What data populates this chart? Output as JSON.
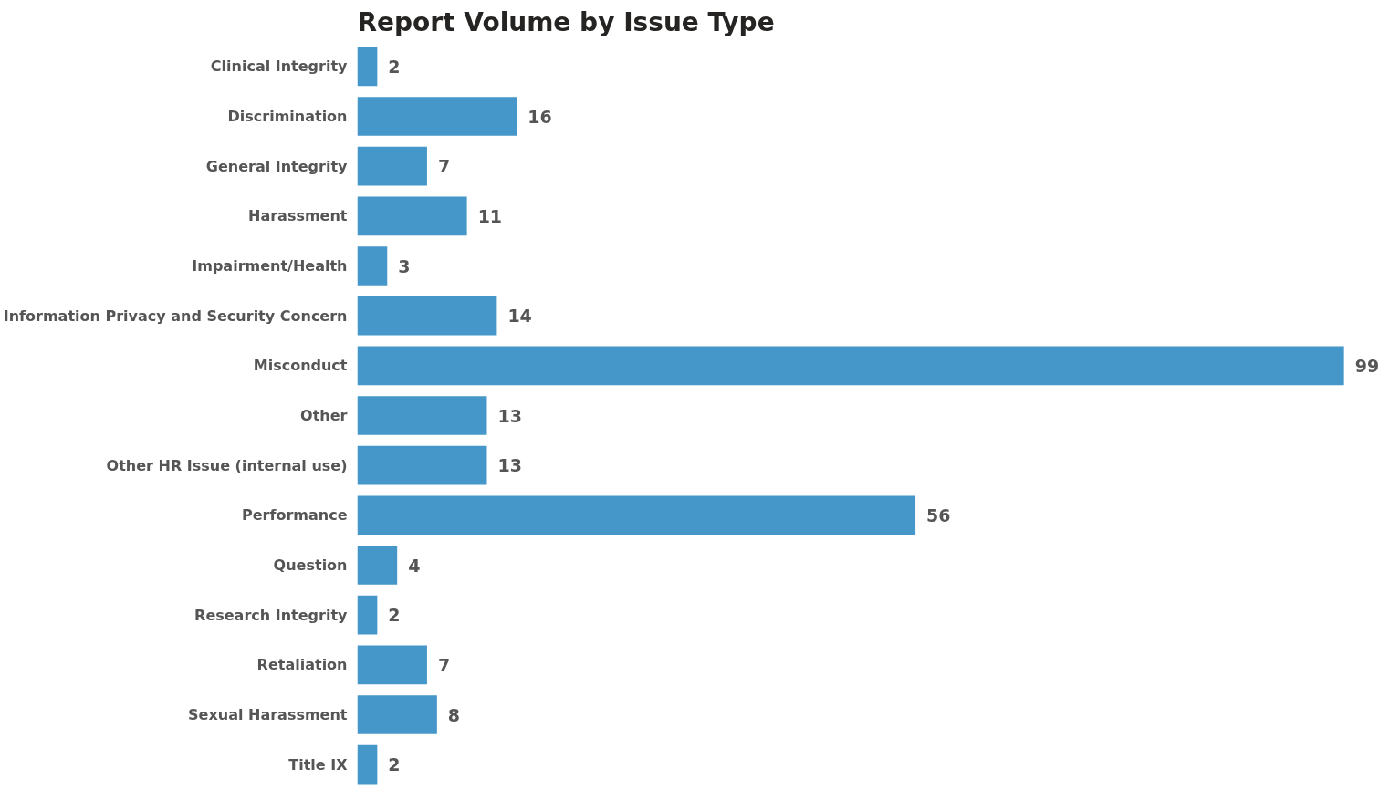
{
  "chart_data": {
    "type": "bar",
    "orientation": "horizontal",
    "title": "Report Volume by Issue Type",
    "categories": [
      "Clinical Integrity",
      "Discrimination",
      "General Integrity",
      "Harassment",
      "Impairment/Health",
      "Information Privacy and Security Concern",
      "Misconduct",
      "Other",
      "Other HR Issue (internal use)",
      "Performance",
      "Question",
      "Research Integrity",
      "Retaliation",
      "Sexual Harassment",
      "Title IX"
    ],
    "values": [
      2,
      16,
      7,
      11,
      3,
      14,
      99,
      13,
      13,
      56,
      4,
      2,
      7,
      8,
      2
    ],
    "color": "#4596c9",
    "data_labels": true
  }
}
